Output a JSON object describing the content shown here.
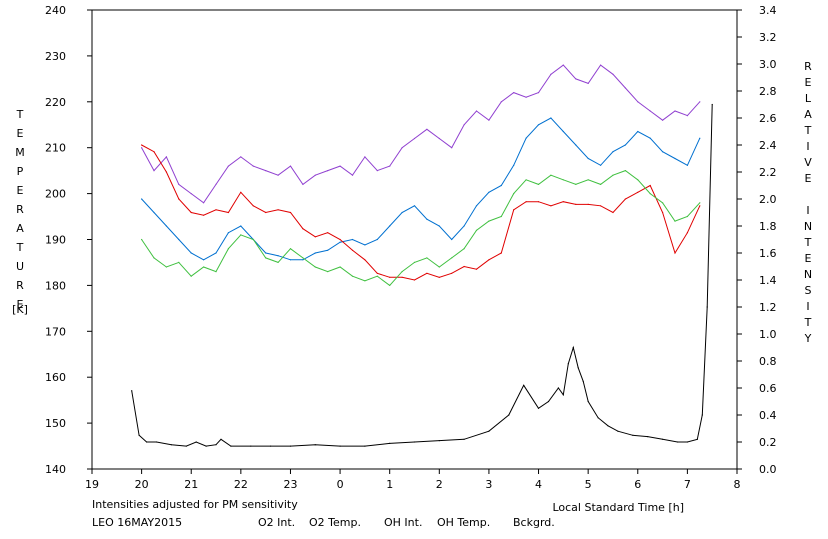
{
  "chart_data": {
    "type": "line",
    "title": "",
    "xlabel": "Local Standard Time [h]",
    "ylabel_left": [
      "T",
      "E",
      "M",
      "P",
      "E",
      "R",
      "A",
      "T",
      "U",
      "R",
      "E"
    ],
    "ylabel_left_unit": "[K]",
    "ylabel_right": [
      "R",
      "E",
      "L",
      "A",
      "T",
      "I",
      "V",
      "E",
      "",
      "I",
      "N",
      "T",
      "E",
      "N",
      "S",
      "I",
      "T",
      "Y"
    ],
    "x_ticks": [
      19,
      20,
      21,
      22,
      23,
      0,
      1,
      2,
      3,
      4,
      5,
      6,
      7,
      8
    ],
    "x_range": [
      19,
      32
    ],
    "y_left_ticks": [
      140,
      150,
      160,
      170,
      180,
      190,
      200,
      210,
      220,
      230,
      240
    ],
    "y_left_range": [
      140,
      240
    ],
    "y_right_ticks": [
      "0.0",
      "0.2",
      "0.4",
      "0.6",
      "0.8",
      "1.0",
      "1.2",
      "1.4",
      "1.6",
      "1.8",
      "2.0",
      "2.2",
      "2.4",
      "2.6",
      "2.8",
      "3.0",
      "3.2",
      "3.4"
    ],
    "y_right_range": [
      0,
      3.4
    ],
    "grid": false,
    "legend_position": "bottom",
    "note": "Intensities adjusted for PM sensitivity",
    "station_date": "LEO 16MAY2015",
    "series": [
      {
        "name": "O2 Int.",
        "axis": "right",
        "color": "#0070d0",
        "x": [
          20.0,
          20.25,
          20.5,
          20.75,
          21.0,
          21.25,
          21.5,
          21.75,
          22.0,
          22.25,
          22.5,
          22.75,
          23.0,
          23.25,
          23.5,
          23.75,
          24.0,
          24.25,
          24.5,
          24.75,
          25.0,
          25.25,
          25.5,
          25.75,
          26.0,
          26.25,
          26.5,
          26.75,
          27.0,
          27.25,
          27.5,
          27.75,
          28.0,
          28.25,
          28.5,
          28.75,
          29.0,
          29.25,
          29.5,
          29.75,
          30.0,
          30.25,
          30.5,
          30.75,
          31.0,
          31.25
        ],
        "values": [
          2.0,
          1.9,
          1.8,
          1.7,
          1.6,
          1.55,
          1.6,
          1.75,
          1.8,
          1.7,
          1.6,
          1.58,
          1.55,
          1.55,
          1.6,
          1.62,
          1.68,
          1.7,
          1.66,
          1.7,
          1.8,
          1.9,
          1.95,
          1.85,
          1.8,
          1.7,
          1.8,
          1.95,
          2.05,
          2.1,
          2.25,
          2.45,
          2.55,
          2.6,
          2.5,
          2.4,
          2.3,
          2.25,
          2.35,
          2.4,
          2.5,
          2.45,
          2.35,
          2.3,
          2.25,
          2.45
        ]
      },
      {
        "name": "O2 Temp.",
        "axis": "left",
        "color": "#9040d0",
        "x": [
          20.0,
          20.25,
          20.5,
          20.75,
          21.0,
          21.25,
          21.5,
          21.75,
          22.0,
          22.25,
          22.5,
          22.75,
          23.0,
          23.25,
          23.5,
          23.75,
          24.0,
          24.25,
          24.5,
          24.75,
          25.0,
          25.25,
          25.5,
          25.75,
          26.0,
          26.25,
          26.5,
          26.75,
          27.0,
          27.25,
          27.5,
          27.75,
          28.0,
          28.25,
          28.5,
          28.75,
          29.0,
          29.25,
          29.5,
          29.75,
          30.0,
          30.25,
          30.5,
          30.75,
          31.0,
          31.25
        ],
        "values": [
          210,
          205,
          208,
          202,
          200,
          198,
          202,
          206,
          208,
          206,
          205,
          204,
          206,
          202,
          204,
          205,
          206,
          204,
          208,
          205,
          206,
          210,
          212,
          214,
          212,
          210,
          215,
          218,
          216,
          220,
          222,
          221,
          222,
          226,
          228,
          225,
          224,
          228,
          226,
          223,
          220,
          218,
          216,
          218,
          217,
          220
        ]
      },
      {
        "name": "OH Int.",
        "axis": "right",
        "color": "#e00000",
        "x": [
          20.0,
          20.25,
          20.5,
          20.75,
          21.0,
          21.25,
          21.5,
          21.75,
          22.0,
          22.25,
          22.5,
          22.75,
          23.0,
          23.25,
          23.5,
          23.75,
          24.0,
          24.25,
          24.5,
          24.75,
          25.0,
          25.25,
          25.5,
          25.75,
          26.0,
          26.25,
          26.5,
          26.75,
          27.0,
          27.25,
          27.5,
          27.75,
          28.0,
          28.25,
          28.5,
          28.75,
          29.0,
          29.25,
          29.5,
          29.75,
          30.0,
          30.25,
          30.5,
          30.75,
          31.0,
          31.25
        ],
        "values": [
          2.4,
          2.35,
          2.2,
          2.0,
          1.9,
          1.88,
          1.92,
          1.9,
          2.05,
          1.95,
          1.9,
          1.92,
          1.9,
          1.78,
          1.72,
          1.75,
          1.7,
          1.62,
          1.55,
          1.45,
          1.42,
          1.42,
          1.4,
          1.45,
          1.42,
          1.45,
          1.5,
          1.48,
          1.55,
          1.6,
          1.92,
          1.98,
          1.98,
          1.95,
          1.98,
          1.96,
          1.96,
          1.95,
          1.9,
          2.0,
          2.05,
          2.1,
          1.9,
          1.6,
          1.75,
          1.95
        ]
      },
      {
        "name": "OH Temp.",
        "axis": "left",
        "color": "#40c040",
        "x": [
          20.0,
          20.25,
          20.5,
          20.75,
          21.0,
          21.25,
          21.5,
          21.75,
          22.0,
          22.25,
          22.5,
          22.75,
          23.0,
          23.25,
          23.5,
          23.75,
          24.0,
          24.25,
          24.5,
          24.75,
          25.0,
          25.25,
          25.5,
          25.75,
          26.0,
          26.25,
          26.5,
          26.75,
          27.0,
          27.25,
          27.5,
          27.75,
          28.0,
          28.25,
          28.5,
          28.75,
          29.0,
          29.25,
          29.5,
          29.75,
          30.0,
          30.25,
          30.5,
          30.75,
          31.0,
          31.25
        ],
        "values": [
          190,
          186,
          184,
          185,
          182,
          184,
          183,
          188,
          191,
          190,
          186,
          185,
          188,
          186,
          184,
          183,
          184,
          182,
          181,
          182,
          180,
          183,
          185,
          186,
          184,
          186,
          188,
          192,
          194,
          195,
          200,
          203,
          202,
          204,
          203,
          202,
          203,
          202,
          204,
          205,
          203,
          200,
          198,
          194,
          195,
          198
        ]
      },
      {
        "name": "Bckgrd.",
        "axis": "right",
        "color": "#000000",
        "x": [
          19.8,
          19.95,
          20.1,
          20.3,
          20.6,
          20.9,
          21.1,
          21.3,
          21.5,
          21.6,
          21.8,
          22.2,
          22.6,
          23.0,
          23.5,
          24.0,
          24.5,
          25.0,
          25.5,
          26.0,
          26.5,
          27.0,
          27.4,
          27.7,
          28.0,
          28.2,
          28.4,
          28.5,
          28.6,
          28.7,
          28.8,
          28.9,
          29.0,
          29.2,
          29.4,
          29.6,
          29.9,
          30.2,
          30.5,
          30.8,
          31.0,
          31.2,
          31.3,
          31.4,
          31.5
        ],
        "values": [
          0.58,
          0.25,
          0.2,
          0.2,
          0.18,
          0.17,
          0.2,
          0.17,
          0.18,
          0.22,
          0.17,
          0.17,
          0.17,
          0.17,
          0.18,
          0.17,
          0.17,
          0.19,
          0.2,
          0.21,
          0.22,
          0.28,
          0.4,
          0.62,
          0.45,
          0.5,
          0.6,
          0.55,
          0.78,
          0.9,
          0.75,
          0.65,
          0.5,
          0.38,
          0.32,
          0.28,
          0.25,
          0.24,
          0.22,
          0.2,
          0.2,
          0.22,
          0.4,
          1.2,
          2.7
        ]
      }
    ]
  },
  "legend": {
    "note": "Intensities adjusted for PM sensitivity",
    "station_date": "LEO 16MAY2015",
    "o2_int": "O2 Int.",
    "o2_temp": "O2 Temp.",
    "oh_int": "OH Int.",
    "oh_temp": "OH Temp.",
    "bckgrd": "Bckgrd.",
    "note_color": "#40c040"
  }
}
